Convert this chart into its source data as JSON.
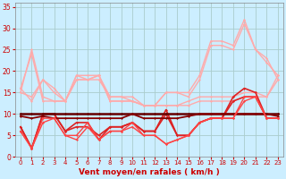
{
  "xlabel": "Vent moyen/en rafales ( km/h )",
  "background_color": "#cceeff",
  "grid_color": "#aacccc",
  "x": [
    0,
    1,
    2,
    3,
    4,
    5,
    6,
    7,
    8,
    9,
    10,
    11,
    12,
    13,
    14,
    15,
    16,
    17,
    18,
    19,
    20,
    21,
    22,
    23
  ],
  "ylim": [
    0,
    36
  ],
  "xlim": [
    -0.5,
    23.5
  ],
  "yticks": [
    0,
    5,
    10,
    15,
    20,
    25,
    30,
    35
  ],
  "series": [
    {
      "data": [
        15,
        25,
        14,
        13,
        13,
        19,
        18,
        19,
        14,
        14,
        13,
        12,
        12,
        15,
        15,
        15,
        19,
        27,
        27,
        26,
        32,
        25,
        23,
        18
      ],
      "color": "#ffaaaa",
      "lw": 1.0
    },
    {
      "data": [
        16,
        24,
        13,
        13,
        13,
        18,
        18,
        19,
        13,
        13,
        13,
        12,
        12,
        15,
        15,
        14,
        18,
        26,
        26,
        25,
        31,
        25,
        22,
        19
      ],
      "color": "#ffaaaa",
      "lw": 1.0
    },
    {
      "data": [
        15,
        14,
        18,
        15,
        13,
        19,
        19,
        19,
        13,
        13,
        13,
        12,
        12,
        12,
        12,
        13,
        14,
        14,
        14,
        14,
        15,
        15,
        14,
        18
      ],
      "color": "#ffaaaa",
      "lw": 1.0
    },
    {
      "data": [
        16,
        13,
        18,
        16,
        13,
        18,
        18,
        18,
        14,
        14,
        14,
        12,
        12,
        12,
        12,
        12,
        13,
        13,
        13,
        13,
        14,
        14,
        14,
        19
      ],
      "color": "#ffaaaa",
      "lw": 1.0
    },
    {
      "data": [
        7,
        2,
        10,
        10,
        6,
        8,
        8,
        4,
        7,
        7,
        8,
        6,
        6,
        11,
        5,
        5,
        8,
        9,
        9,
        14,
        16,
        15,
        9,
        9
      ],
      "color": "#dd2222",
      "lw": 1.2
    },
    {
      "data": [
        7,
        2,
        10,
        10,
        6,
        7,
        7,
        5,
        7,
        7,
        8,
        6,
        6,
        10,
        5,
        5,
        8,
        9,
        9,
        13,
        14,
        14,
        9,
        9
      ],
      "color": "#dd2222",
      "lw": 1.2
    },
    {
      "data": [
        10,
        10,
        10,
        10,
        10,
        10,
        10,
        10,
        10,
        10,
        10,
        10,
        10,
        10,
        10,
        10,
        10,
        10,
        10,
        10,
        10,
        10,
        10,
        10
      ],
      "color": "#660000",
      "lw": 1.8
    },
    {
      "data": [
        9.5,
        9,
        9.5,
        9,
        9,
        9,
        9,
        9,
        9,
        9,
        10,
        9,
        9,
        9,
        9,
        9.5,
        10,
        10,
        10,
        10,
        10,
        10,
        10,
        9.5
      ],
      "color": "#880000",
      "lw": 1.3
    },
    {
      "data": [
        6,
        2,
        9,
        9,
        5,
        5,
        8,
        4,
        6,
        6,
        8,
        5,
        5,
        3,
        4,
        5,
        8,
        9,
        9,
        9,
        14,
        14,
        9,
        9
      ],
      "color": "#ff4444",
      "lw": 1.0
    },
    {
      "data": [
        6,
        2,
        8,
        9,
        5,
        4,
        7,
        4,
        6,
        6,
        7,
        5,
        5,
        3,
        4,
        5,
        8,
        9,
        9,
        9,
        13,
        14,
        9,
        9
      ],
      "color": "#ff4444",
      "lw": 1.0
    }
  ]
}
